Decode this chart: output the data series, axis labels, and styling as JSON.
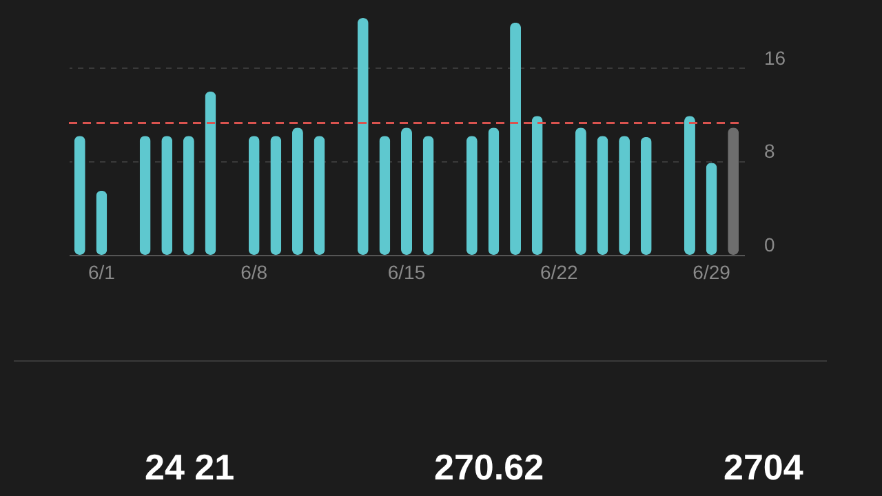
{
  "chart_data": {
    "type": "bar",
    "categories": [
      null,
      "6/1",
      null,
      null,
      null,
      null,
      null,
      null,
      "6/8",
      null,
      null,
      null,
      null,
      null,
      null,
      "6/15",
      null,
      null,
      null,
      null,
      null,
      null,
      "6/22",
      null,
      null,
      null,
      null,
      null,
      null,
      "6/29",
      null
    ],
    "values": [
      10.2,
      5.5,
      null,
      10.2,
      10.2,
      10.2,
      14.0,
      null,
      10.2,
      10.2,
      10.9,
      10.2,
      null,
      20.3,
      10.2,
      10.9,
      10.2,
      null,
      10.2,
      10.9,
      19.9,
      11.9,
      null,
      10.9,
      10.2,
      10.2,
      10.1,
      null,
      11.9,
      7.9,
      10.9
    ],
    "colors": [
      "#5ec8cf",
      "#5ec8cf",
      "#5ec8cf",
      "#5ec8cf",
      "#5ec8cf",
      "#5ec8cf",
      "#5ec8cf",
      "#5ec8cf",
      "#5ec8cf",
      "#5ec8cf",
      "#5ec8cf",
      "#5ec8cf",
      "#5ec8cf",
      "#5ec8cf",
      "#5ec8cf",
      "#5ec8cf",
      "#5ec8cf",
      "#5ec8cf",
      "#5ec8cf",
      "#5ec8cf",
      "#5ec8cf",
      "#5ec8cf",
      "#5ec8cf",
      "#5ec8cf",
      "#5ec8cf",
      "#5ec8cf",
      "#5ec8cf",
      "#5ec8cf",
      "#5ec8cf",
      "#5ec8cf",
      "#6e6e6e"
    ],
    "ylim": [
      0,
      20.3
    ],
    "yticks": [
      0,
      8,
      16
    ],
    "grid": "y",
    "ref_lines": [
      {
        "axis": "y",
        "value": 11.3,
        "color": "#d9534f",
        "line_style": "dashed"
      }
    ],
    "annotations": [
      "24 21",
      "270.62",
      "2704"
    ]
  }
}
